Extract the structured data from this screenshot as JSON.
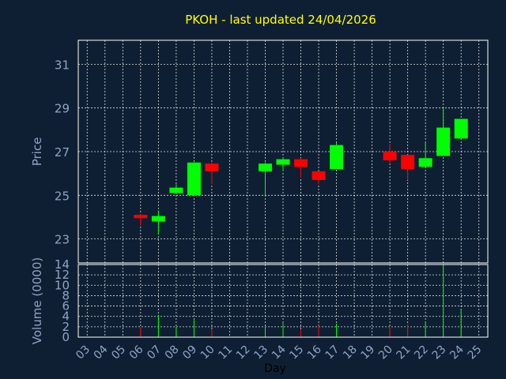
{
  "chart_data": {
    "type": "candlestick",
    "title": "PKOH - last updated 24/04/2026",
    "ylabel": "Price",
    "volume_label": "Volume (0000)",
    "xlabel": "Day",
    "price_ylim": [
      21.9,
      32.1
    ],
    "price_ticks": [
      "23",
      "25",
      "27",
      "29",
      "31"
    ],
    "volume_ylim": [
      0,
      14
    ],
    "volume_ticks": [
      "0",
      "2",
      "4",
      "6",
      "8",
      "10",
      "12",
      "14"
    ],
    "x_ticks": [
      "03",
      "04",
      "05",
      "06",
      "07",
      "08",
      "09",
      "10",
      "11",
      "12",
      "13",
      "14",
      "15",
      "16",
      "17",
      "18",
      "19",
      "20",
      "21",
      "22",
      "23",
      "24",
      "25"
    ],
    "grid": true,
    "colors": {
      "up": "#00ff00",
      "down": "#ff0000",
      "grid": "#ffffff",
      "frame": "#ffffff",
      "title": "#ffff00",
      "text": "#8fa4c4",
      "background": "#0f1f33"
    },
    "candles": [
      {
        "day": "06",
        "open": 24.1,
        "high": 24.15,
        "low": 23.6,
        "close": 23.95,
        "volume": 1.8
      },
      {
        "day": "07",
        "open": 23.8,
        "high": 24.3,
        "low": 23.2,
        "close": 24.05,
        "volume": 4.3
      },
      {
        "day": "08",
        "open": 25.1,
        "high": 25.5,
        "low": 25.05,
        "close": 25.35,
        "volume": 2.0
      },
      {
        "day": "09",
        "open": 25.0,
        "high": 26.5,
        "low": 25.0,
        "close": 26.5,
        "volume": 3.3
      },
      {
        "day": "10",
        "open": 26.45,
        "high": 26.5,
        "low": 25.5,
        "close": 26.1,
        "volume": 1.5
      },
      {
        "day": "13",
        "open": 26.1,
        "high": 26.5,
        "low": 25.0,
        "close": 26.45,
        "volume": 2.0
      },
      {
        "day": "14",
        "open": 26.4,
        "high": 26.7,
        "low": 26.1,
        "close": 26.65,
        "volume": 2.7
      },
      {
        "day": "15",
        "open": 26.65,
        "high": 26.7,
        "low": 25.8,
        "close": 26.3,
        "volume": 1.5
      },
      {
        "day": "16",
        "open": 26.1,
        "high": 26.1,
        "low": 25.5,
        "close": 25.7,
        "volume": 2.2
      },
      {
        "day": "17",
        "open": 26.2,
        "high": 27.4,
        "low": 26.2,
        "close": 27.3,
        "volume": 2.6
      },
      {
        "day": "20",
        "open": 27.0,
        "high": 27.35,
        "low": 26.5,
        "close": 26.6,
        "volume": 1.8
      },
      {
        "day": "21",
        "open": 26.85,
        "high": 26.85,
        "low": 25.7,
        "close": 26.2,
        "volume": 2.5
      },
      {
        "day": "22",
        "open": 26.3,
        "high": 27.4,
        "low": 26.3,
        "close": 26.7,
        "volume": 3.0
      },
      {
        "day": "23",
        "open": 26.8,
        "high": 29.0,
        "low": 26.8,
        "close": 28.1,
        "volume": 14.0
      },
      {
        "day": "24",
        "open": 27.6,
        "high": 28.5,
        "low": 27.6,
        "close": 28.5,
        "volume": 5.5
      }
    ]
  }
}
